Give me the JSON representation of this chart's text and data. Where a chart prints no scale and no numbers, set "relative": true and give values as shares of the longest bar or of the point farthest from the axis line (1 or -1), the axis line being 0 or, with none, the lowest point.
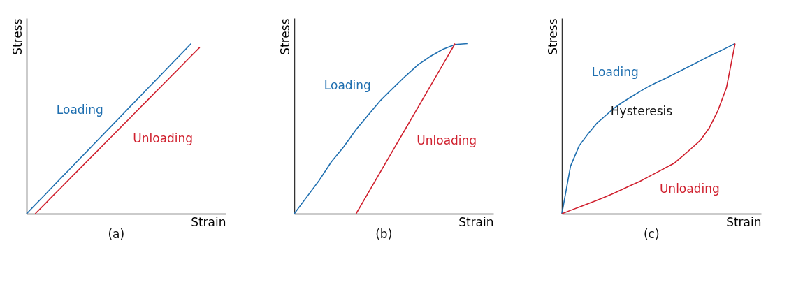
{
  "chart_data": [
    {
      "type": "line",
      "relative": true,
      "xlabel": "Strain",
      "ylabel": "Stress",
      "annotations": [
        "(a)"
      ],
      "categories": [
        null,
        null,
        null,
        null,
        null,
        null,
        null,
        null,
        null,
        null,
        null,
        null,
        null,
        null,
        null,
        null,
        null,
        null,
        null,
        null,
        null
      ],
      "series": [
        {
          "name": "Loading",
          "color": "#1f6fb0",
          "values": [
            0,
            0.053,
            0.105,
            0.158,
            0.211,
            0.263,
            0.316,
            0.368,
            0.421,
            0.474,
            0.526,
            0.579,
            0.632,
            0.684,
            0.737,
            0.789,
            0.842,
            0.895,
            0.947,
            1,
            null
          ]
        },
        {
          "name": "Unloading",
          "color": "#d0202e",
          "values": [
            null,
            0,
            0.051,
            0.103,
            0.154,
            0.206,
            0.257,
            0.309,
            0.36,
            0.412,
            0.463,
            0.515,
            0.566,
            0.618,
            0.669,
            0.721,
            0.772,
            0.824,
            0.875,
            0.927,
            0.978
          ]
        }
      ]
    },
    {
      "type": "line",
      "relative": true,
      "xlabel": "Strain",
      "ylabel": "Stress",
      "annotations": [
        "(b)"
      ],
      "categories": [
        null,
        null,
        null,
        null,
        null,
        null,
        null,
        null,
        null,
        null,
        null,
        null,
        null,
        null,
        null
      ],
      "series": [
        {
          "name": "Loading",
          "color": "#1f6fb0",
          "values": [
            0,
            0.097,
            0.194,
            0.305,
            0.393,
            0.495,
            0.582,
            0.668,
            0.74,
            0.81,
            0.875,
            0.925,
            0.966,
            0.995,
            1
          ]
        },
        {
          "name": "Unloading",
          "color": "#d0202e",
          "values": [
            null,
            null,
            null,
            null,
            null,
            0,
            0.125,
            0.25,
            0.375,
            0.5,
            0.625,
            0.75,
            0.875,
            1,
            null
          ]
        }
      ]
    },
    {
      "type": "line",
      "relative": true,
      "xlabel": "Strain",
      "ylabel": "Stress",
      "annotations": [
        "Hysteresis",
        "(c)"
      ],
      "categories": [
        null,
        null,
        null,
        null,
        null,
        null,
        null,
        null,
        null,
        null,
        null,
        null,
        null,
        null,
        null,
        null,
        null,
        null,
        null,
        null,
        null
      ],
      "series": [
        {
          "name": "Loading",
          "color": "#1f6fb0",
          "values": [
            0,
            0.28,
            0.4,
            0.468,
            0.53,
            0.575,
            0.62,
            0.655,
            0.687,
            0.718,
            0.748,
            0.773,
            0.797,
            0.822,
            0.848,
            0.874,
            0.9,
            0.926,
            0.95,
            0.975,
            1
          ]
        },
        {
          "name": "Unloading",
          "color": "#d0202e",
          "values": [
            0,
            0.02,
            0.039,
            0.059,
            0.078,
            0.099,
            0.12,
            0.144,
            0.167,
            0.19,
            0.217,
            0.244,
            0.271,
            0.298,
            0.341,
            0.386,
            0.432,
            0.503,
            0.604,
            0.74,
            1
          ]
        }
      ]
    }
  ]
}
